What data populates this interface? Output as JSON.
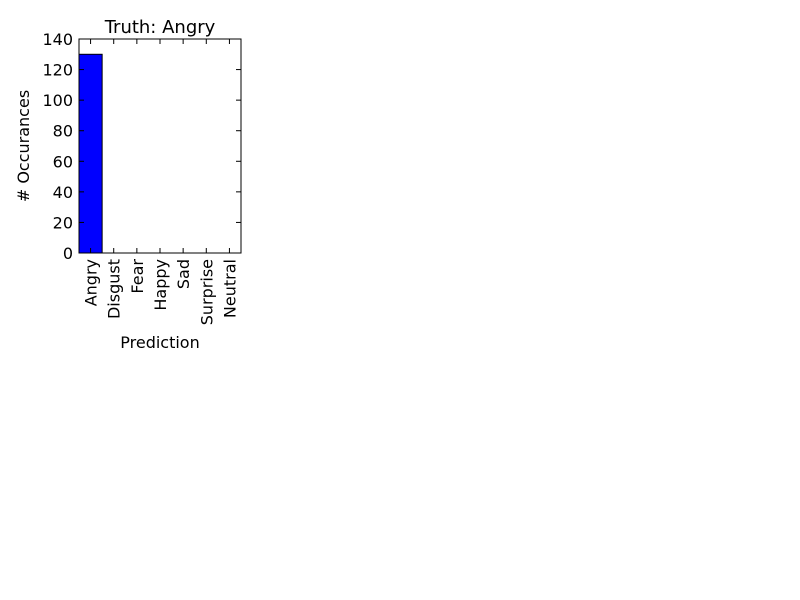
{
  "chart_data": {
    "type": "bar",
    "title": "Truth: Angry",
    "xlabel": "Prediction",
    "ylabel": "# Occurances",
    "categories": [
      "Angry",
      "Disgust",
      "Fear",
      "Happy",
      "Sad",
      "Surprise",
      "Neutral"
    ],
    "values": [
      130,
      0,
      0,
      0,
      0,
      0,
      0
    ],
    "ylim": [
      0,
      140
    ],
    "yticks": [
      0,
      20,
      40,
      60,
      80,
      100,
      120,
      140
    ],
    "grid": false,
    "bar_color": "#0000ff",
    "edge_color": "#000000"
  }
}
